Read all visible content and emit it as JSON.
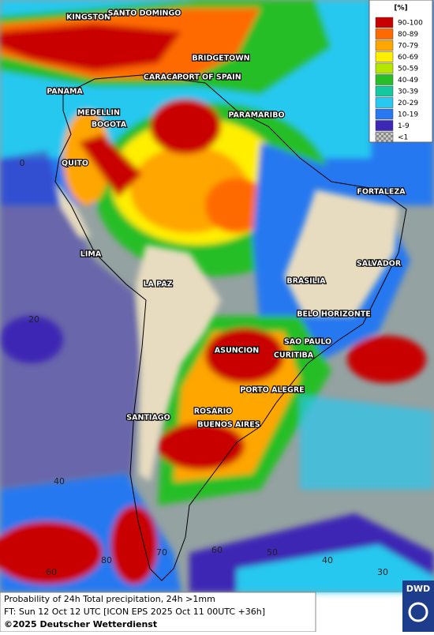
{
  "legend": {
    "title": "[%]",
    "items": [
      {
        "label": "90-100",
        "color": "#c80000"
      },
      {
        "label": "80-89",
        "color": "#ff6a00"
      },
      {
        "label": "70-79",
        "color": "#ffa600"
      },
      {
        "label": "60-69",
        "color": "#ffee00"
      },
      {
        "label": "50-59",
        "color": "#b4e600"
      },
      {
        "label": "40-49",
        "color": "#28be28"
      },
      {
        "label": "30-39",
        "color": "#14c8a0"
      },
      {
        "label": "20-29",
        "color": "#28c8f0"
      },
      {
        "label": "10-19",
        "color": "#2878f0"
      },
      {
        "label": "1-9",
        "color": "#3c28b4"
      },
      {
        "label": "<1",
        "color": "#a0a8a8"
      }
    ]
  },
  "cities": [
    "KINGSTON",
    "SANTO DOMINGO",
    "BRIDGETOWN",
    "CARACAS",
    "PORT OF SPAIN",
    "PANAMA",
    "MEDELLIN",
    "BOGOTA",
    "PARAMARIBO",
    "QUITO",
    "FORTALEZA",
    "LIMA",
    "SALVADOR",
    "LA PAZ",
    "BRASILIA",
    "BELO HORIZONTE",
    "SAO PAULO",
    "ASUNCION",
    "CURITIBA",
    "PORTO ALEGRE",
    "ROSARIO",
    "BUENOS AIRES",
    "SANTIAGO"
  ],
  "grid_labels": [
    "0",
    "20",
    "40",
    "80",
    "70",
    "60",
    "50",
    "40",
    "30",
    "60"
  ],
  "footer": {
    "line1": "Probability of 24h Total precipitation, 24h >1mm",
    "line2": "FT: Sun 12 Oct 12 UTC [ICON EPS 2025 Oct 11 00UTC +36h]",
    "line3": "©2025 Deutscher Wetterdienst"
  },
  "logo": "DWD"
}
